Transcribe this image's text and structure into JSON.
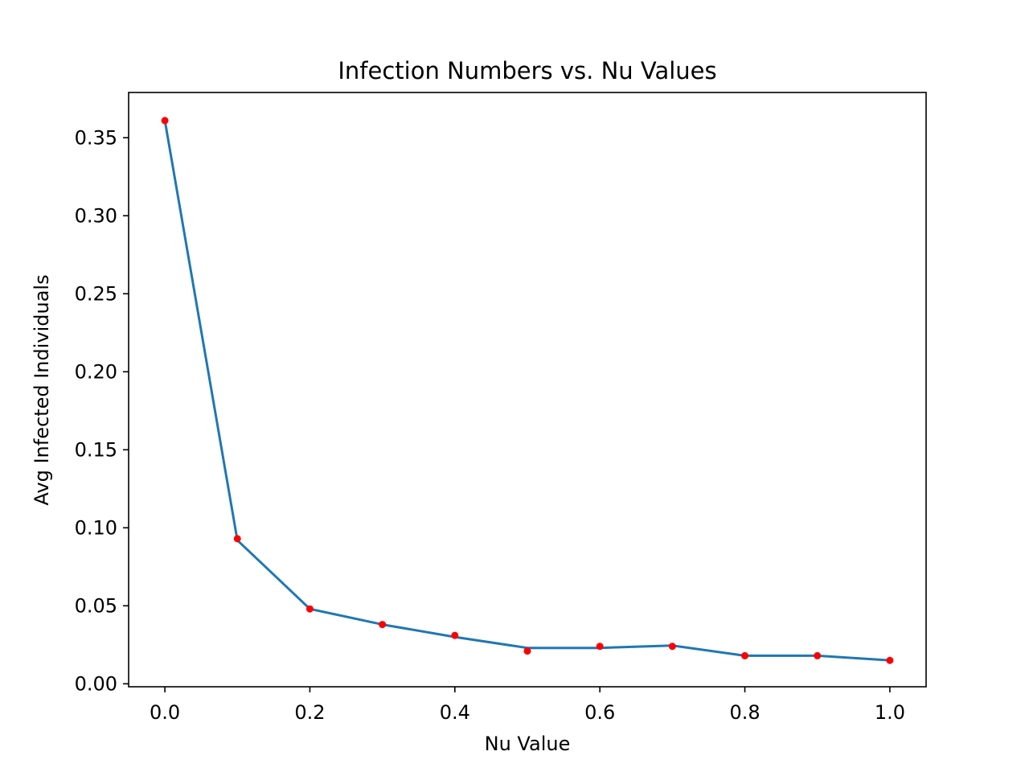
{
  "chart_data": {
    "type": "line",
    "title": "Infection Numbers vs. Nu Values",
    "xlabel": "Nu Value",
    "ylabel": "Avg Infected Individuals",
    "xlim": [
      -0.05,
      1.05
    ],
    "ylim": [
      -0.0019,
      0.379
    ],
    "xticks": [
      0.0,
      0.2,
      0.4,
      0.6,
      0.8,
      1.0
    ],
    "xtick_labels": [
      "0.0",
      "0.2",
      "0.4",
      "0.6",
      "0.8",
      "1.0"
    ],
    "yticks": [
      0.0,
      0.05,
      0.1,
      0.15,
      0.2,
      0.25,
      0.3,
      0.35
    ],
    "ytick_labels": [
      "0.00",
      "0.05",
      "0.10",
      "0.15",
      "0.20",
      "0.25",
      "0.30",
      "0.35"
    ],
    "grid": false,
    "series": [
      {
        "kind": "line",
        "color": "#1f77b4",
        "x": [
          0.0,
          0.1,
          0.2,
          0.3,
          0.4,
          0.5,
          0.6,
          0.7,
          0.8,
          0.9,
          1.0
        ],
        "y": [
          0.361,
          0.092,
          0.048,
          0.038,
          0.03,
          0.023,
          0.023,
          0.0245,
          0.018,
          0.018,
          0.015
        ]
      },
      {
        "kind": "scatter",
        "color": "#ff0000",
        "x": [
          0.0,
          0.1,
          0.2,
          0.3,
          0.4,
          0.5,
          0.6,
          0.7,
          0.8,
          0.9,
          1.0
        ],
        "y": [
          0.361,
          0.093,
          0.048,
          0.038,
          0.031,
          0.021,
          0.024,
          0.024,
          0.018,
          0.018,
          0.015
        ]
      }
    ]
  }
}
